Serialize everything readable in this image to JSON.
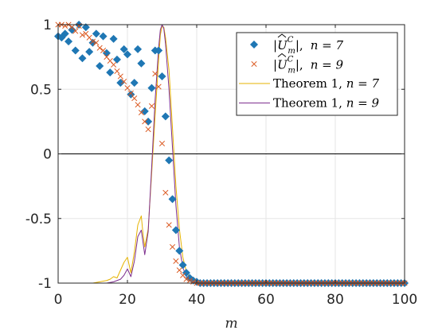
{
  "chart_data": {
    "type": "line",
    "xlabel": "m",
    "ylabel": "",
    "xlim": [
      0,
      100
    ],
    "ylim": [
      -1,
      1
    ],
    "x_ticks": [
      "0",
      "20",
      "40",
      "60",
      "80",
      "100"
    ],
    "y_ticks": [
      "-1",
      "-0.5",
      "0",
      "0.5",
      "1"
    ],
    "grid": true,
    "legend_position": "top-right",
    "zero_line": true,
    "series": [
      {
        "name": "|Û_m^C|,  n = 7",
        "legend_math": {
          "abs_open": "|",
          "main": "U",
          "sub": "m",
          "sup": "C",
          "abs_close": "|,",
          "n_text": "n = 7"
        },
        "style": "markers",
        "marker": "diamond",
        "color": "#1f77b4",
        "points": [
          [
            0,
            0.91
          ],
          [
            1,
            0.9
          ],
          [
            2,
            0.93
          ],
          [
            3,
            0.87
          ],
          [
            4,
            0.96
          ],
          [
            5,
            0.8
          ],
          [
            6,
            1.0
          ],
          [
            7,
            0.74
          ],
          [
            8,
            0.98
          ],
          [
            9,
            0.79
          ],
          [
            10,
            0.86
          ],
          [
            11,
            0.93
          ],
          [
            12,
            0.68
          ],
          [
            13,
            0.91
          ],
          [
            14,
            0.78
          ],
          [
            15,
            0.63
          ],
          [
            16,
            0.89
          ],
          [
            17,
            0.73
          ],
          [
            18,
            0.55
          ],
          [
            19,
            0.81
          ],
          [
            20,
            0.77
          ],
          [
            21,
            0.46
          ],
          [
            22,
            0.55
          ],
          [
            23,
            0.81
          ],
          [
            24,
            0.7
          ],
          [
            25,
            0.33
          ],
          [
            26,
            0.25
          ],
          [
            27,
            0.51
          ],
          [
            28,
            0.8
          ],
          [
            29,
            0.8
          ],
          [
            30,
            0.6
          ],
          [
            31,
            0.29
          ],
          [
            32,
            -0.05
          ],
          [
            33,
            -0.35
          ],
          [
            34,
            -0.59
          ],
          [
            35,
            -0.75
          ],
          [
            36,
            -0.86
          ],
          [
            37,
            -0.92
          ],
          [
            38,
            -0.96
          ],
          [
            39,
            -0.98
          ],
          [
            40,
            -0.99
          ],
          [
            41,
            -1.0
          ],
          [
            42,
            -1.0
          ],
          [
            43,
            -1.0
          ],
          [
            44,
            -1.0
          ],
          [
            45,
            -1.0
          ],
          [
            46,
            -1.0
          ],
          [
            47,
            -1.0
          ],
          [
            48,
            -1.0
          ],
          [
            49,
            -1.0
          ],
          [
            50,
            -1.0
          ],
          [
            51,
            -1.0
          ],
          [
            52,
            -1.0
          ],
          [
            53,
            -1.0
          ],
          [
            54,
            -1.0
          ],
          [
            55,
            -1.0
          ],
          [
            56,
            -1.0
          ],
          [
            57,
            -1.0
          ],
          [
            58,
            -1.0
          ],
          [
            59,
            -1.0
          ],
          [
            60,
            -1.0
          ],
          [
            61,
            -1.0
          ],
          [
            62,
            -1.0
          ],
          [
            63,
            -1.0
          ],
          [
            64,
            -1.0
          ],
          [
            65,
            -1.0
          ],
          [
            66,
            -1.0
          ],
          [
            67,
            -1.0
          ],
          [
            68,
            -1.0
          ],
          [
            69,
            -1.0
          ],
          [
            70,
            -1.0
          ],
          [
            71,
            -1.0
          ],
          [
            72,
            -1.0
          ],
          [
            73,
            -1.0
          ],
          [
            74,
            -1.0
          ],
          [
            75,
            -1.0
          ],
          [
            76,
            -1.0
          ],
          [
            77,
            -1.0
          ],
          [
            78,
            -1.0
          ],
          [
            79,
            -1.0
          ],
          [
            80,
            -1.0
          ],
          [
            81,
            -1.0
          ],
          [
            82,
            -1.0
          ],
          [
            83,
            -1.0
          ],
          [
            84,
            -1.0
          ],
          [
            85,
            -1.0
          ],
          [
            86,
            -1.0
          ],
          [
            87,
            -1.0
          ],
          [
            88,
            -1.0
          ],
          [
            89,
            -1.0
          ],
          [
            90,
            -1.0
          ],
          [
            91,
            -1.0
          ],
          [
            92,
            -1.0
          ],
          [
            93,
            -1.0
          ],
          [
            94,
            -1.0
          ],
          [
            95,
            -1.0
          ],
          [
            96,
            -1.0
          ],
          [
            97,
            -1.0
          ],
          [
            98,
            -1.0
          ],
          [
            99,
            -1.0
          ],
          [
            100,
            -1.0
          ]
        ]
      },
      {
        "name": "|Û_m^C|,  n = 9",
        "legend_math": {
          "abs_open": "|",
          "main": "U",
          "sub": "m",
          "sup": "C",
          "abs_close": "|,",
          "n_text": "n = 9"
        },
        "style": "markers",
        "marker": "cross",
        "color": "#d95319",
        "points": [
          [
            0,
            1.0
          ],
          [
            1,
            1.0
          ],
          [
            2,
            0.99
          ],
          [
            3,
            1.0
          ],
          [
            4,
            0.98
          ],
          [
            5,
            0.95
          ],
          [
            6,
            0.99
          ],
          [
            7,
            0.92
          ],
          [
            8,
            0.93
          ],
          [
            9,
            0.9
          ],
          [
            10,
            0.87
          ],
          [
            11,
            0.86
          ],
          [
            12,
            0.82
          ],
          [
            13,
            0.8
          ],
          [
            14,
            0.75
          ],
          [
            15,
            0.72
          ],
          [
            16,
            0.69
          ],
          [
            17,
            0.64
          ],
          [
            18,
            0.6
          ],
          [
            19,
            0.56
          ],
          [
            20,
            0.51
          ],
          [
            21,
            0.47
          ],
          [
            22,
            0.43
          ],
          [
            23,
            0.38
          ],
          [
            24,
            0.32
          ],
          [
            25,
            0.25
          ],
          [
            26,
            0.19
          ],
          [
            27,
            0.37
          ],
          [
            28,
            0.62
          ],
          [
            29,
            0.52
          ],
          [
            30,
            0.08
          ],
          [
            31,
            -0.3
          ],
          [
            32,
            -0.55
          ],
          [
            33,
            -0.72
          ],
          [
            34,
            -0.83
          ],
          [
            35,
            -0.9
          ],
          [
            36,
            -0.94
          ],
          [
            37,
            -0.97
          ],
          [
            38,
            -0.98
          ],
          [
            39,
            -0.99
          ],
          [
            40,
            -1.0
          ],
          [
            41,
            -1.0
          ],
          [
            42,
            -1.0
          ],
          [
            43,
            -1.0
          ],
          [
            44,
            -1.0
          ],
          [
            45,
            -1.0
          ],
          [
            46,
            -1.0
          ],
          [
            47,
            -1.0
          ],
          [
            48,
            -1.0
          ],
          [
            49,
            -1.0
          ],
          [
            50,
            -1.0
          ],
          [
            51,
            -1.0
          ],
          [
            52,
            -1.0
          ],
          [
            53,
            -1.0
          ],
          [
            54,
            -1.0
          ],
          [
            55,
            -1.0
          ],
          [
            56,
            -1.0
          ],
          [
            57,
            -1.0
          ],
          [
            58,
            -1.0
          ],
          [
            59,
            -1.0
          ],
          [
            60,
            -1.0
          ],
          [
            61,
            -1.0
          ],
          [
            62,
            -1.0
          ],
          [
            63,
            -1.0
          ],
          [
            64,
            -1.0
          ],
          [
            65,
            -1.0
          ],
          [
            66,
            -1.0
          ],
          [
            67,
            -1.0
          ],
          [
            68,
            -1.0
          ],
          [
            69,
            -1.0
          ],
          [
            70,
            -1.0
          ],
          [
            71,
            -1.0
          ],
          [
            72,
            -1.0
          ],
          [
            73,
            -1.0
          ],
          [
            74,
            -1.0
          ],
          [
            75,
            -1.0
          ],
          [
            76,
            -1.0
          ],
          [
            77,
            -1.0
          ],
          [
            78,
            -1.0
          ],
          [
            79,
            -1.0
          ],
          [
            80,
            -1.0
          ],
          [
            81,
            -1.0
          ],
          [
            82,
            -1.0
          ],
          [
            83,
            -1.0
          ],
          [
            84,
            -1.0
          ],
          [
            85,
            -1.0
          ],
          [
            86,
            -1.0
          ],
          [
            87,
            -1.0
          ],
          [
            88,
            -1.0
          ],
          [
            89,
            -1.0
          ],
          [
            90,
            -1.0
          ],
          [
            91,
            -1.0
          ],
          [
            92,
            -1.0
          ],
          [
            93,
            -1.0
          ],
          [
            94,
            -1.0
          ],
          [
            95,
            -1.0
          ],
          [
            96,
            -1.0
          ],
          [
            97,
            -1.0
          ],
          [
            98,
            -1.0
          ],
          [
            99,
            -1.0
          ],
          [
            100,
            -1.0
          ]
        ]
      },
      {
        "name": "Theorem 1, n = 7",
        "legend_text": "Theorem 1, ",
        "n_text": "n = 7",
        "style": "line",
        "color": "#e6b300",
        "points": [
          [
            0,
            -1.0
          ],
          [
            10,
            -1.0
          ],
          [
            12,
            -0.99
          ],
          [
            14,
            -0.98
          ],
          [
            15,
            -0.97
          ],
          [
            16,
            -0.95
          ],
          [
            17,
            -0.96
          ],
          [
            18,
            -0.9
          ],
          [
            19,
            -0.84
          ],
          [
            20,
            -0.8
          ],
          [
            20.5,
            -0.86
          ],
          [
            21,
            -0.92
          ],
          [
            22,
            -0.76
          ],
          [
            23,
            -0.55
          ],
          [
            24,
            -0.48
          ],
          [
            24.5,
            -0.62
          ],
          [
            25,
            -0.72
          ],
          [
            26,
            -0.58
          ],
          [
            27,
            -0.15
          ],
          [
            28,
            0.3
          ],
          [
            29,
            0.72
          ],
          [
            29.5,
            0.92
          ],
          [
            30,
            0.99
          ],
          [
            30.5,
            0.98
          ],
          [
            31,
            0.9
          ],
          [
            32,
            0.65
          ],
          [
            33,
            0.2
          ],
          [
            34,
            -0.25
          ],
          [
            35,
            -0.58
          ],
          [
            36,
            -0.8
          ],
          [
            37,
            -0.91
          ],
          [
            38,
            -0.96
          ],
          [
            39,
            -0.98
          ],
          [
            40,
            -0.99
          ],
          [
            42,
            -1.0
          ],
          [
            100,
            -1.0
          ]
        ]
      },
      {
        "name": "Theorem 1, n = 9",
        "legend_text": "Theorem 1, ",
        "n_text": "n = 9",
        "style": "line",
        "color": "#7e2f8e",
        "points": [
          [
            0,
            -1.0
          ],
          [
            14,
            -1.0
          ],
          [
            16,
            -0.99
          ],
          [
            17,
            -0.98
          ],
          [
            18,
            -0.97
          ],
          [
            19,
            -0.94
          ],
          [
            20,
            -0.89
          ],
          [
            21,
            -0.95
          ],
          [
            22,
            -0.83
          ],
          [
            23,
            -0.64
          ],
          [
            24,
            -0.59
          ],
          [
            25,
            -0.78
          ],
          [
            26,
            -0.6
          ],
          [
            27,
            -0.1
          ],
          [
            28,
            0.42
          ],
          [
            29,
            0.82
          ],
          [
            29.5,
            0.96
          ],
          [
            30,
            1.0
          ],
          [
            30.5,
            0.97
          ],
          [
            31,
            0.85
          ],
          [
            32,
            0.5
          ],
          [
            33,
            0.05
          ],
          [
            34,
            -0.4
          ],
          [
            35,
            -0.72
          ],
          [
            36,
            -0.88
          ],
          [
            37,
            -0.95
          ],
          [
            38,
            -0.98
          ],
          [
            40,
            -0.995
          ],
          [
            42,
            -1.0
          ],
          [
            100,
            -1.0
          ]
        ]
      }
    ]
  }
}
